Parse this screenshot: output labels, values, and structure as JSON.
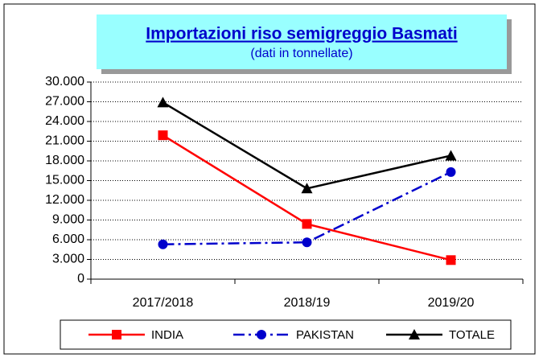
{
  "chart_data": {
    "type": "line",
    "title": "Importazioni riso semigreggio Basmati",
    "subtitle": "(dati in tonnellate)",
    "categories": [
      "2017/2018",
      "2018/19",
      "2019/20"
    ],
    "series": [
      {
        "name": "INDIA",
        "color": "#ff0000",
        "marker": "square",
        "dash": "solid",
        "values": [
          21900,
          8400,
          2900
        ]
      },
      {
        "name": "PAKISTAN",
        "color": "#0000cc",
        "marker": "circle",
        "dash": "dashdot",
        "values": [
          5300,
          5600,
          16300
        ]
      },
      {
        "name": "TOTALE",
        "color": "#000000",
        "marker": "triangle",
        "dash": "solid",
        "values": [
          26900,
          13800,
          18800
        ]
      }
    ],
    "ylim": [
      0,
      30000
    ],
    "yticks": [
      0,
      {
        "value": 3000,
        "label": "3.000"
      },
      {
        "value": 6000,
        "label": "6.000"
      },
      {
        "value": 9000,
        "label": "9.000"
      },
      {
        "value": 12000,
        "label": "12.000"
      },
      {
        "value": 15000,
        "label": "15.000"
      },
      {
        "value": 18000,
        "label": "18.000"
      },
      {
        "value": 21000,
        "label": "21.000"
      },
      {
        "value": 24000,
        "label": "24.000"
      },
      {
        "value": 27000,
        "label": "27.000"
      },
      {
        "value": 30000,
        "label": "30.000"
      }
    ],
    "grid": true,
    "legend": "bottom"
  }
}
